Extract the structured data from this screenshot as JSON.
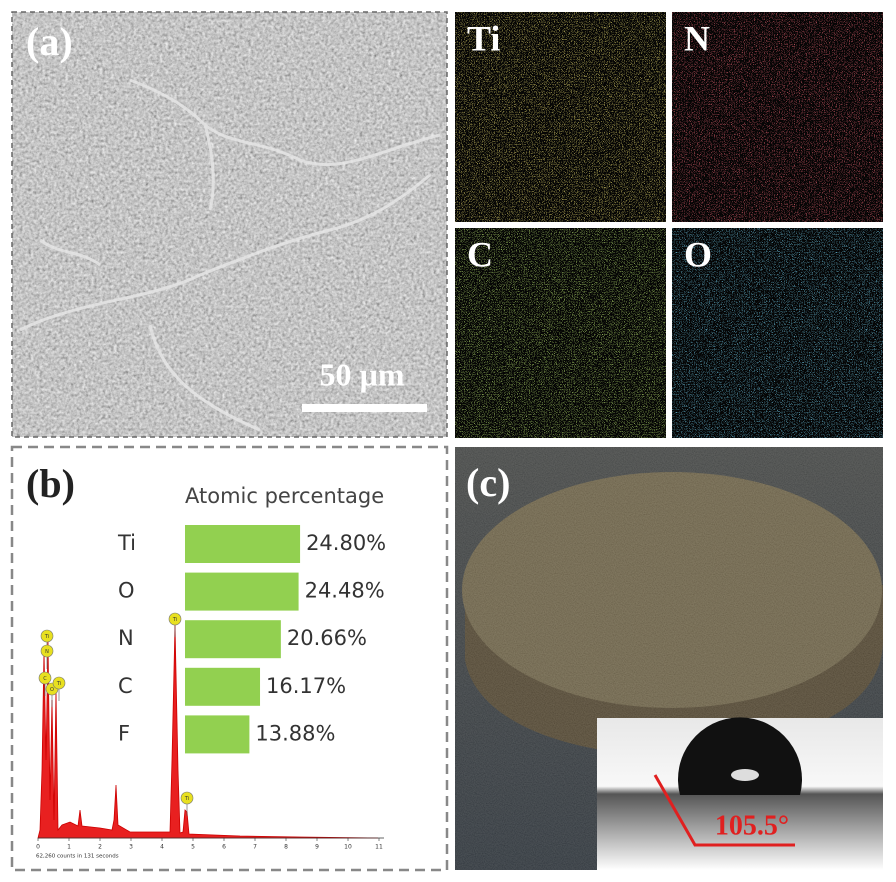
{
  "panel_a": {
    "label": "(a)",
    "scale_bar": "50 µm"
  },
  "maps": [
    {
      "label": "Ti",
      "color": "#d4b82a"
    },
    {
      "label": "N",
      "color": "#c8202a"
    },
    {
      "label": "C",
      "color": "#7cc22a"
    },
    {
      "label": "O",
      "color": "#2a9ad4"
    }
  ],
  "chart_data": {
    "type": "bar",
    "label": "(b)",
    "title": "Atomic percentage",
    "categories": [
      "Ti",
      "O",
      "N",
      "C",
      "F"
    ],
    "values": [
      24.8,
      24.48,
      20.66,
      16.17,
      13.88
    ],
    "value_labels": [
      "24.80%",
      "24.48%",
      "20.66%",
      "16.17%",
      "13.88%"
    ],
    "color": "#92d050"
  },
  "spectrum": {
    "xticks": [
      0,
      1,
      2,
      3,
      4,
      5,
      6,
      7,
      8,
      9,
      10,
      11
    ],
    "caption": "62,260 counts in 131 seconds",
    "peak_labels": [
      "Ti",
      "N",
      "C",
      "O",
      "Ti",
      "Ti",
      "Ti"
    ]
  },
  "panel_c": {
    "label": "(c)",
    "contact_angle": "105.5°"
  }
}
